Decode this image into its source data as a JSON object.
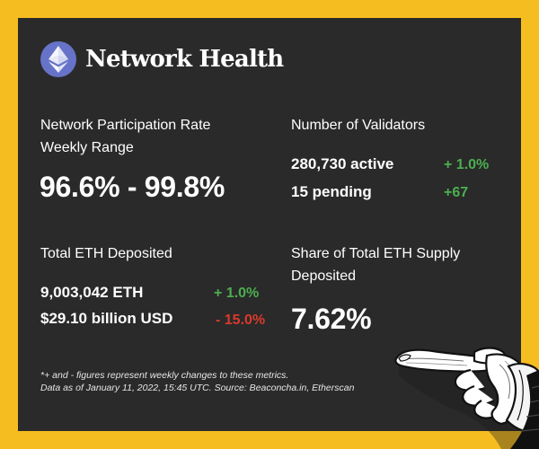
{
  "header": {
    "title": "Network Health",
    "logo_icon": "ethereum-icon"
  },
  "participation": {
    "label_line1": "Network Participation Rate",
    "label_line2": "Weekly Range",
    "value": "96.6% - 99.8%"
  },
  "validators": {
    "label": "Number of Validators",
    "active": "280,730 active",
    "active_change": "+ 1.0%",
    "pending": "15 pending",
    "pending_change": "+67"
  },
  "deposited": {
    "label": "Total ETH Deposited",
    "eth": "9,003,042 ETH",
    "eth_change": "+ 1.0%",
    "usd": "$29.10 billion USD",
    "usd_change": "- 15.0%"
  },
  "share": {
    "label_line1": "Share of Total ETH Supply",
    "label_line2": "Deposited",
    "value": "7.62%"
  },
  "footnote": {
    "line1": "*+ and - figures represent weekly changes to these metrics.",
    "line2": "Data as of January 11, 2022, 15:45 UTC. Source: Beaconcha.in, Etherscan"
  },
  "colors": {
    "background": "#f6bd21",
    "card": "#2a2a2a",
    "positive": "#4caf50",
    "negative": "#d93a2b",
    "logo": "#6673c8"
  }
}
